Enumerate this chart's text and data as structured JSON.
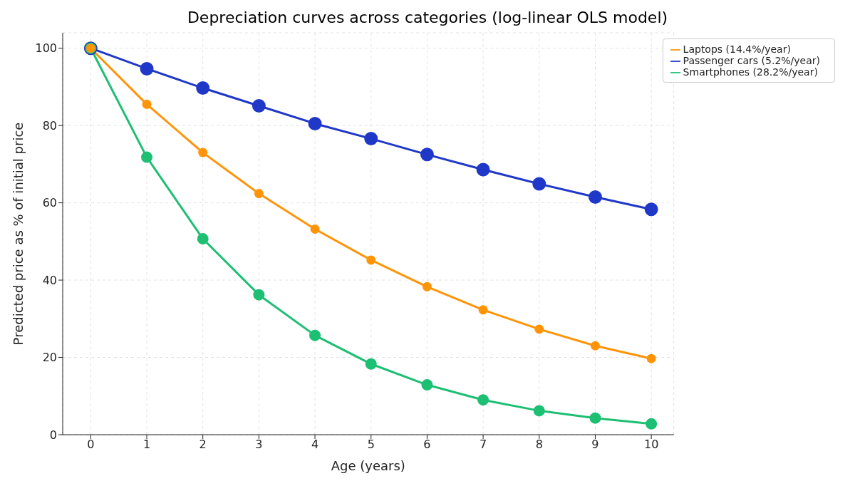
{
  "chart_data": {
    "type": "line",
    "title": "Depreciation curves across categories (log-linear OLS model)",
    "xlabel": "Age (years)",
    "ylabel": "Predicted price as % of initial price",
    "x": [
      0,
      1,
      2,
      3,
      4,
      5,
      6,
      7,
      8,
      9,
      10
    ],
    "series": [
      {
        "name": "Passenger cars (5.2%/year)",
        "color": "#2038c8",
        "values": [
          100,
          94.7,
          89.7,
          85.1,
          80.5,
          76.6,
          72.5,
          68.6,
          64.9,
          61.5,
          58.3
        ]
      },
      {
        "name": "Smartphones (28.2%/year)",
        "color": "#1dbf73",
        "values": [
          100,
          71.8,
          50.7,
          36.2,
          25.7,
          18.3,
          12.9,
          9.0,
          6.2,
          4.3,
          2.8
        ]
      },
      {
        "name": "Laptops (14.4%/year)",
        "color": "#ff9408",
        "values": [
          100,
          85.5,
          73.0,
          62.4,
          53.2,
          45.2,
          38.3,
          32.3,
          27.3,
          23.0,
          19.7
        ]
      }
    ],
    "xlim": [
      -0.5,
      10.4
    ],
    "xticks": [
      0,
      1,
      2,
      3,
      4,
      5,
      6,
      7,
      8,
      9,
      10
    ],
    "ylim": [
      0,
      104
    ],
    "yticks": [
      0,
      20,
      40,
      60,
      80,
      100
    ],
    "grid": true,
    "legend": "top right",
    "marker": "circle",
    "line_style": "solid"
  }
}
